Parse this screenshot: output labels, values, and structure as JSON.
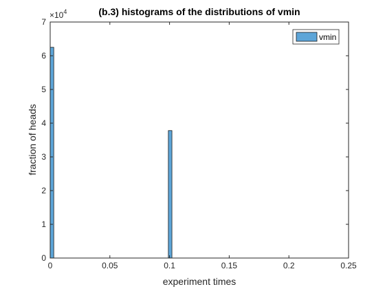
{
  "chart_data": {
    "type": "bar",
    "title": "(b.3) histograms of the distributions of vmin",
    "xlabel": "experiment times",
    "ylabel": "fraction of heads",
    "y_exponent_label": "×10",
    "y_exponent": "4",
    "xlim": [
      0,
      0.25
    ],
    "ylim": [
      0,
      70000
    ],
    "x_ticks": [
      0,
      0.05,
      0.1,
      0.15,
      0.2,
      0.25
    ],
    "x_tick_labels": [
      "0",
      "0.05",
      "0.1",
      "0.15",
      "0.2",
      "0.25"
    ],
    "y_ticks": [
      0,
      10000,
      20000,
      30000,
      40000,
      50000,
      60000,
      70000
    ],
    "y_tick_labels": [
      "0",
      "1",
      "2",
      "3",
      "4",
      "5",
      "6",
      "7"
    ],
    "grid": false,
    "legend_position": "top-right",
    "bin_width": 0.003,
    "series": [
      {
        "name": "vmin",
        "bins": [
          {
            "x_start": 0.0,
            "x_end": 0.003,
            "value": 62500
          },
          {
            "x_start": 0.099,
            "x_end": 0.102,
            "value": 37800
          }
        ]
      }
    ],
    "colors": {
      "bar_fill": "#5da5d8",
      "bar_edge": "#1a1a1a",
      "axis": "#262626"
    }
  }
}
